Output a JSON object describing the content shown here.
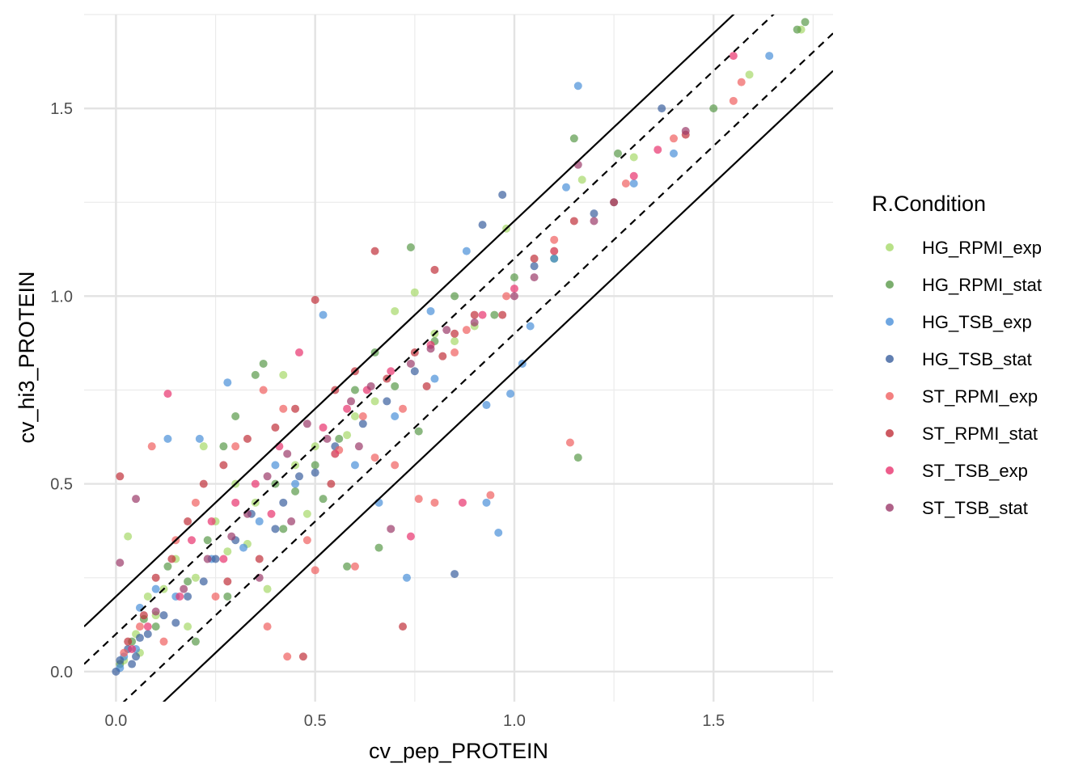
{
  "chart_data": {
    "type": "scatter",
    "xlabel": "cv_pep_PROTEIN",
    "ylabel": "cv_hi3_PROTEIN",
    "xlim": [
      -0.08,
      1.8
    ],
    "ylim": [
      -0.08,
      1.75
    ],
    "x_ticks": [
      0.0,
      0.5,
      1.0,
      1.5
    ],
    "y_ticks": [
      0.0,
      0.5,
      1.0,
      1.5
    ],
    "x_tick_labels": [
      "0.0",
      "0.5",
      "1.0",
      "1.5"
    ],
    "y_tick_labels": [
      "0.0",
      "0.5",
      "1.0",
      "1.5"
    ],
    "grid": true,
    "legend": {
      "title": "R.Condition",
      "position": "right"
    },
    "reference_lines": [
      {
        "slope": 1,
        "intercept": 0.1,
        "style": "dashed"
      },
      {
        "slope": 1,
        "intercept": -0.1,
        "style": "dashed"
      },
      {
        "slope": 1,
        "intercept": 0.2,
        "style": "solid"
      },
      {
        "slope": 1,
        "intercept": -0.2,
        "style": "solid"
      }
    ],
    "series": [
      {
        "name": "HG_RPMI_exp",
        "color": "#a6d96a",
        "points": [
          [
            0.02,
            0.03
          ],
          [
            0.05,
            0.1
          ],
          [
            0.08,
            0.2
          ],
          [
            0.03,
            0.36
          ],
          [
            0.12,
            0.22
          ],
          [
            0.15,
            0.3
          ],
          [
            0.2,
            0.25
          ],
          [
            0.25,
            0.4
          ],
          [
            0.28,
            0.32
          ],
          [
            0.3,
            0.5
          ],
          [
            0.35,
            0.45
          ],
          [
            0.42,
            0.79
          ],
          [
            0.45,
            0.55
          ],
          [
            0.5,
            0.6
          ],
          [
            0.55,
            0.58
          ],
          [
            0.6,
            0.68
          ],
          [
            0.65,
            0.72
          ],
          [
            0.7,
            0.96
          ],
          [
            0.75,
            1.01
          ],
          [
            0.8,
            0.9
          ],
          [
            0.85,
            0.88
          ],
          [
            0.98,
            1.18
          ],
          [
            1.17,
            1.31
          ],
          [
            1.3,
            1.37
          ],
          [
            1.59,
            1.59
          ],
          [
            1.72,
            1.71
          ],
          [
            0.38,
            0.22
          ],
          [
            0.22,
            0.6
          ],
          [
            0.1,
            0.15
          ],
          [
            0.06,
            0.05
          ],
          [
            0.9,
            0.92
          ],
          [
            1.1,
            1.12
          ],
          [
            0.33,
            0.34
          ],
          [
            0.48,
            0.42
          ],
          [
            0.58,
            0.63
          ],
          [
            0.18,
            0.12
          ]
        ]
      },
      {
        "name": "HG_RPMI_stat",
        "color": "#5a9a4a",
        "points": [
          [
            0.01,
            0.02
          ],
          [
            0.04,
            0.08
          ],
          [
            0.1,
            0.12
          ],
          [
            0.13,
            0.28
          ],
          [
            0.18,
            0.24
          ],
          [
            0.23,
            0.35
          ],
          [
            0.27,
            0.6
          ],
          [
            0.3,
            0.68
          ],
          [
            0.35,
            0.79
          ],
          [
            0.37,
            0.82
          ],
          [
            0.4,
            0.5
          ],
          [
            0.45,
            0.48
          ],
          [
            0.5,
            0.55
          ],
          [
            0.56,
            0.62
          ],
          [
            0.6,
            0.75
          ],
          [
            0.65,
            0.85
          ],
          [
            0.7,
            0.76
          ],
          [
            0.74,
            1.13
          ],
          [
            0.76,
            0.64
          ],
          [
            0.8,
            0.88
          ],
          [
            0.85,
            1.0
          ],
          [
            1.0,
            1.05
          ],
          [
            1.1,
            1.1
          ],
          [
            1.15,
            1.42
          ],
          [
            1.16,
            0.57
          ],
          [
            1.26,
            1.38
          ],
          [
            1.5,
            1.5
          ],
          [
            1.73,
            1.73
          ],
          [
            1.71,
            1.71
          ],
          [
            0.58,
            0.28
          ],
          [
            0.66,
            0.33
          ],
          [
            0.2,
            0.08
          ],
          [
            0.07,
            0.14
          ],
          [
            0.28,
            0.2
          ],
          [
            0.42,
            0.38
          ],
          [
            0.52,
            0.46
          ],
          [
            0.95,
            0.95
          ]
        ]
      },
      {
        "name": "HG_TSB_exp",
        "color": "#4a90d9",
        "points": [
          [
            0.01,
            0.01
          ],
          [
            0.02,
            0.04
          ],
          [
            0.06,
            0.17
          ],
          [
            0.1,
            0.22
          ],
          [
            0.13,
            0.62
          ],
          [
            0.21,
            0.62
          ],
          [
            0.28,
            0.77
          ],
          [
            0.32,
            0.33
          ],
          [
            0.4,
            0.55
          ],
          [
            0.52,
            0.95
          ],
          [
            0.6,
            0.55
          ],
          [
            0.66,
            0.45
          ],
          [
            0.73,
            0.25
          ],
          [
            0.79,
            0.96
          ],
          [
            0.88,
            1.12
          ],
          [
            0.93,
            0.71
          ],
          [
            0.93,
            0.45
          ],
          [
            0.96,
            0.37
          ],
          [
            0.99,
            0.74
          ],
          [
            1.02,
            0.82
          ],
          [
            1.04,
            0.92
          ],
          [
            1.1,
            1.1
          ],
          [
            1.13,
            1.29
          ],
          [
            1.16,
            1.56
          ],
          [
            1.25,
            1.25
          ],
          [
            1.3,
            1.3
          ],
          [
            1.4,
            1.38
          ],
          [
            1.64,
            1.64
          ],
          [
            0.05,
            0.06
          ],
          [
            0.15,
            0.2
          ],
          [
            0.24,
            0.3
          ],
          [
            0.36,
            0.4
          ],
          [
            0.45,
            0.5
          ],
          [
            0.7,
            0.68
          ],
          [
            0.8,
            0.78
          ]
        ]
      },
      {
        "name": "HG_TSB_stat",
        "color": "#3a5f9e",
        "points": [
          [
            0.0,
            0.0
          ],
          [
            0.01,
            0.03
          ],
          [
            0.03,
            0.06
          ],
          [
            0.05,
            0.04
          ],
          [
            0.08,
            0.1
          ],
          [
            0.12,
            0.15
          ],
          [
            0.18,
            0.2
          ],
          [
            0.25,
            0.3
          ],
          [
            0.34,
            0.42
          ],
          [
            0.4,
            0.38
          ],
          [
            0.46,
            0.52
          ],
          [
            0.55,
            0.6
          ],
          [
            0.62,
            0.66
          ],
          [
            0.68,
            0.72
          ],
          [
            0.75,
            0.8
          ],
          [
            0.85,
            0.26
          ],
          [
            0.92,
            1.19
          ],
          [
            0.97,
            1.27
          ],
          [
            1.05,
            1.08
          ],
          [
            1.2,
            1.22
          ],
          [
            1.37,
            1.5
          ],
          [
            0.3,
            0.35
          ],
          [
            0.5,
            0.53
          ],
          [
            0.42,
            0.45
          ],
          [
            0.22,
            0.24
          ],
          [
            0.15,
            0.13
          ],
          [
            0.04,
            0.02
          ],
          [
            0.06,
            0.09
          ]
        ]
      },
      {
        "name": "ST_RPMI_exp",
        "color": "#f06060",
        "points": [
          [
            0.02,
            0.05
          ],
          [
            0.06,
            0.12
          ],
          [
            0.09,
            0.6
          ],
          [
            0.15,
            0.35
          ],
          [
            0.2,
            0.45
          ],
          [
            0.25,
            0.2
          ],
          [
            0.3,
            0.6
          ],
          [
            0.37,
            0.75
          ],
          [
            0.42,
            0.7
          ],
          [
            0.5,
            0.27
          ],
          [
            0.56,
            0.59
          ],
          [
            0.6,
            0.28
          ],
          [
            0.65,
            0.57
          ],
          [
            0.7,
            0.55
          ],
          [
            0.76,
            0.46
          ],
          [
            0.8,
            0.45
          ],
          [
            0.85,
            0.85
          ],
          [
            0.88,
            0.91
          ],
          [
            0.94,
            0.47
          ],
          [
            0.98,
            1.0
          ],
          [
            1.1,
            1.15
          ],
          [
            1.14,
            0.61
          ],
          [
            1.28,
            1.3
          ],
          [
            1.4,
            1.42
          ],
          [
            1.55,
            1.52
          ],
          [
            1.57,
            1.57
          ],
          [
            0.43,
            0.04
          ],
          [
            0.38,
            0.12
          ],
          [
            0.12,
            0.08
          ],
          [
            0.48,
            0.35
          ],
          [
            0.62,
            0.68
          ],
          [
            0.72,
            0.7
          ]
        ]
      },
      {
        "name": "ST_RPMI_stat",
        "color": "#c0303a",
        "points": [
          [
            0.01,
            0.52
          ],
          [
            0.03,
            0.08
          ],
          [
            0.07,
            0.15
          ],
          [
            0.1,
            0.25
          ],
          [
            0.14,
            0.3
          ],
          [
            0.18,
            0.4
          ],
          [
            0.22,
            0.5
          ],
          [
            0.27,
            0.55
          ],
          [
            0.33,
            0.62
          ],
          [
            0.4,
            0.65
          ],
          [
            0.45,
            0.7
          ],
          [
            0.5,
            0.99
          ],
          [
            0.55,
            0.75
          ],
          [
            0.6,
            0.8
          ],
          [
            0.65,
            1.12
          ],
          [
            0.68,
            0.78
          ],
          [
            0.72,
            0.12
          ],
          [
            0.75,
            0.85
          ],
          [
            0.8,
            1.07
          ],
          [
            0.85,
            0.9
          ],
          [
            0.9,
            0.95
          ],
          [
            0.97,
            0.95
          ],
          [
            1.05,
            1.1
          ],
          [
            1.15,
            1.2
          ],
          [
            1.25,
            1.25
          ],
          [
            1.43,
            1.43
          ],
          [
            0.47,
            0.04
          ],
          [
            0.28,
            0.24
          ],
          [
            0.36,
            0.3
          ],
          [
            0.54,
            0.5
          ],
          [
            0.78,
            0.76
          ],
          [
            0.82,
            0.84
          ]
        ]
      },
      {
        "name": "ST_TSB_exp",
        "color": "#e8336e",
        "points": [
          [
            0.04,
            0.06
          ],
          [
            0.08,
            0.12
          ],
          [
            0.13,
            0.74
          ],
          [
            0.19,
            0.35
          ],
          [
            0.24,
            0.4
          ],
          [
            0.3,
            0.45
          ],
          [
            0.35,
            0.5
          ],
          [
            0.41,
            0.6
          ],
          [
            0.46,
            0.85
          ],
          [
            0.52,
            0.65
          ],
          [
            0.58,
            0.7
          ],
          [
            0.63,
            0.75
          ],
          [
            0.69,
            0.8
          ],
          [
            0.74,
            0.36
          ],
          [
            0.79,
            0.87
          ],
          [
            0.87,
            0.45
          ],
          [
            0.92,
            0.95
          ],
          [
            1.0,
            1.02
          ],
          [
            1.1,
            1.12
          ],
          [
            1.3,
            1.32
          ],
          [
            1.36,
            1.39
          ],
          [
            1.55,
            1.64
          ],
          [
            0.16,
            0.2
          ],
          [
            0.27,
            0.3
          ],
          [
            0.39,
            0.42
          ],
          [
            0.55,
            0.58
          ]
        ]
      },
      {
        "name": "ST_TSB_stat",
        "color": "#9b3a6a",
        "points": [
          [
            0.01,
            0.29
          ],
          [
            0.05,
            0.46
          ],
          [
            0.1,
            0.16
          ],
          [
            0.17,
            0.22
          ],
          [
            0.23,
            0.3
          ],
          [
            0.29,
            0.36
          ],
          [
            0.33,
            0.42
          ],
          [
            0.38,
            0.52
          ],
          [
            0.43,
            0.58
          ],
          [
            0.48,
            0.66
          ],
          [
            0.53,
            0.62
          ],
          [
            0.59,
            0.72
          ],
          [
            0.64,
            0.76
          ],
          [
            0.69,
            0.38
          ],
          [
            0.74,
            0.82
          ],
          [
            0.79,
            0.86
          ],
          [
            0.83,
            0.91
          ],
          [
            0.9,
            0.93
          ],
          [
            1.0,
            1.0
          ],
          [
            1.05,
            1.05
          ],
          [
            1.16,
            1.35
          ],
          [
            1.2,
            1.2
          ],
          [
            1.43,
            1.44
          ],
          [
            0.36,
            0.25
          ],
          [
            0.44,
            0.4
          ],
          [
            0.61,
            0.6
          ]
        ]
      }
    ]
  }
}
